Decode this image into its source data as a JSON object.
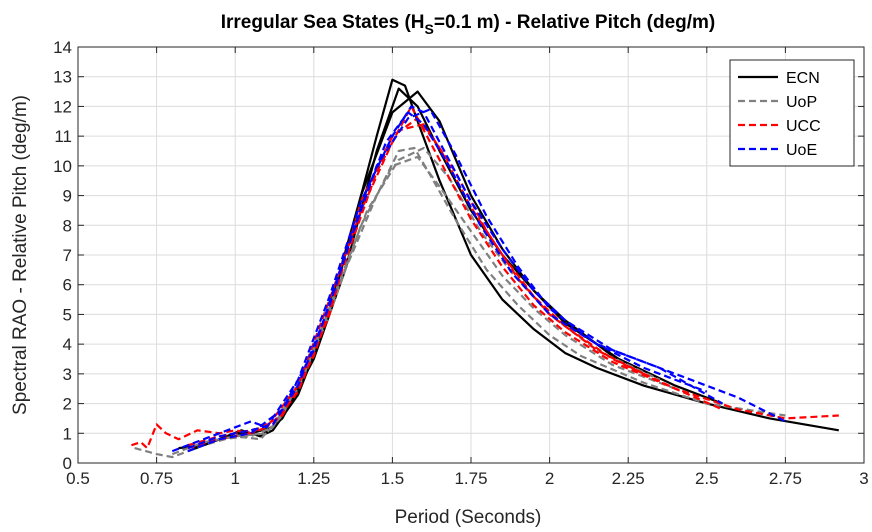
{
  "chart_data": {
    "type": "line",
    "title": {
      "pre": "Irregular Sea States (H",
      "sub": "S",
      "post": "=0.1 m) - Relative Pitch (deg/m)"
    },
    "xlabel": "Period (Seconds)",
    "ylabel": "Spectral RAO - Relative Pitch (deg/m)",
    "xlim": [
      0.5,
      3
    ],
    "ylim": [
      0,
      14
    ],
    "xticks": [
      0.5,
      0.75,
      1,
      1.25,
      1.5,
      1.75,
      2,
      2.25,
      2.5,
      2.75,
      3
    ],
    "xtick_labels": [
      "0.5",
      "0.75",
      "1",
      "1.25",
      "1.5",
      "1.75",
      "2",
      "2.25",
      "2.5",
      "2.75",
      "3"
    ],
    "yticks": [
      0,
      1,
      2,
      3,
      4,
      5,
      6,
      7,
      8,
      9,
      10,
      11,
      12,
      13,
      14
    ],
    "ytick_labels": [
      "0",
      "1",
      "2",
      "3",
      "4",
      "5",
      "6",
      "7",
      "8",
      "9",
      "10",
      "11",
      "12",
      "13",
      "14"
    ],
    "grid": true,
    "legend_position": "top-right",
    "series": [
      {
        "name": "ECN",
        "color": "#000000",
        "dash": "solid",
        "curves": [
          {
            "x": [
              0.82,
              0.9,
              0.95,
              1.0,
              1.05,
              1.08,
              1.12,
              1.2,
              1.3,
              1.4,
              1.45,
              1.5,
              1.54,
              1.58,
              1.65,
              1.75,
              1.85,
              1.95,
              2.05,
              2.15,
              2.3,
              2.5,
              2.7,
              2.92
            ],
            "y": [
              0.5,
              0.6,
              0.8,
              1.0,
              1.0,
              0.9,
              1.1,
              2.3,
              5.0,
              9.0,
              11.0,
              12.9,
              12.7,
              11.5,
              9.5,
              7.0,
              5.5,
              4.5,
              3.7,
              3.2,
              2.6,
              2.0,
              1.5,
              1.1
            ]
          },
          {
            "x": [
              0.85,
              0.95,
              1.02,
              1.08,
              1.15,
              1.25,
              1.35,
              1.45,
              1.52,
              1.58,
              1.65,
              1.75,
              1.85,
              1.95,
              2.05,
              2.15,
              2.22
            ],
            "y": [
              0.4,
              0.8,
              1.1,
              0.9,
              1.5,
              3.5,
              6.5,
              10.5,
              12.6,
              12.0,
              10.5,
              8.5,
              7.0,
              5.8,
              4.7,
              4.0,
              3.5
            ]
          },
          {
            "x": [
              0.85,
              0.95,
              1.05,
              1.12,
              1.2,
              1.3,
              1.4,
              1.5,
              1.58,
              1.65,
              1.75,
              1.85,
              1.95,
              2.05,
              2.2,
              2.4,
              2.55
            ],
            "y": [
              0.4,
              0.8,
              1.0,
              1.2,
              2.4,
              5.2,
              9.0,
              11.8,
              12.5,
              11.5,
              9.0,
              7.2,
              5.8,
              4.8,
              3.6,
              2.6,
              2.0
            ]
          }
        ]
      },
      {
        "name": "UoP",
        "color": "#808080",
        "dash": "dashed",
        "curves": [
          {
            "x": [
              0.68,
              0.75,
              0.8,
              0.9,
              1.0,
              1.08,
              1.15,
              1.25,
              1.35,
              1.45,
              1.52,
              1.57,
              1.62,
              1.7,
              1.8,
              1.9,
              2.0,
              2.1,
              2.3,
              2.5,
              2.75
            ],
            "y": [
              0.5,
              0.3,
              0.2,
              0.6,
              0.9,
              0.8,
              1.6,
              3.8,
              6.5,
              9.0,
              10.5,
              10.6,
              9.7,
              8.2,
              6.5,
              5.3,
              4.3,
              3.6,
              2.7,
              2.0,
              1.6
            ]
          },
          {
            "x": [
              0.8,
              0.9,
              1.0,
              1.1,
              1.2,
              1.3,
              1.4,
              1.5,
              1.58,
              1.65,
              1.75,
              1.85,
              1.95,
              2.05,
              2.2,
              2.4
            ],
            "y": [
              0.3,
              0.7,
              0.9,
              1.0,
              2.5,
              5.0,
              8.0,
              10.0,
              10.3,
              9.3,
              7.8,
              6.3,
              5.2,
              4.3,
              3.3,
              2.5
            ]
          },
          {
            "x": [
              0.85,
              0.95,
              1.05,
              1.12,
              1.22,
              1.32,
              1.42,
              1.52,
              1.6,
              1.68,
              1.78,
              1.88,
              2.0,
              2.15,
              2.35
            ],
            "y": [
              0.4,
              0.8,
              0.9,
              1.2,
              3.0,
              5.8,
              8.5,
              10.2,
              10.6,
              9.6,
              7.8,
              6.4,
              5.0,
              3.8,
              2.8
            ]
          }
        ]
      },
      {
        "name": "UCC",
        "color": "#ff0000",
        "dash": "dashed",
        "curves": [
          {
            "x": [
              0.67,
              0.7,
              0.72,
              0.75,
              0.78,
              0.82,
              0.88,
              0.95,
              1.0,
              1.05,
              1.1,
              1.2,
              1.3,
              1.4,
              1.5,
              1.56,
              1.6,
              1.65,
              1.75,
              1.85,
              1.95,
              2.05,
              2.2,
              2.4,
              2.6,
              2.75,
              2.92
            ],
            "y": [
              0.6,
              0.7,
              0.5,
              1.3,
              1.0,
              0.8,
              1.1,
              1.0,
              1.1,
              1.0,
              1.2,
              2.6,
              5.5,
              8.5,
              10.8,
              12.0,
              11.2,
              10.2,
              8.2,
              6.6,
              5.3,
              4.4,
              3.4,
              2.5,
              1.8,
              1.5,
              1.6
            ]
          },
          {
            "x": [
              0.85,
              0.95,
              1.05,
              1.12,
              1.2,
              1.3,
              1.4,
              1.5,
              1.58,
              1.65,
              1.75,
              1.85,
              1.95,
              2.05,
              2.2,
              2.4,
              2.55
            ],
            "y": [
              0.6,
              0.9,
              1.1,
              1.3,
              2.4,
              5.0,
              8.8,
              11.0,
              11.6,
              10.6,
              8.6,
              7.0,
              5.6,
              4.6,
              3.5,
              2.5,
              1.8
            ]
          },
          {
            "x": [
              0.85,
              0.95,
              1.05,
              1.15,
              1.25,
              1.35,
              1.45,
              1.52,
              1.6,
              1.7,
              1.8,
              1.9,
              2.0,
              2.15,
              2.3
            ],
            "y": [
              0.5,
              0.8,
              1.0,
              1.6,
              3.6,
              6.8,
              9.8,
              11.2,
              11.4,
              9.8,
              7.8,
              6.2,
              5.0,
              3.8,
              3.0
            ]
          }
        ]
      },
      {
        "name": "UoE",
        "color": "#0000ff",
        "dash": "dashed",
        "curves": [
          {
            "x": [
              0.8,
              0.9,
              1.0,
              1.05,
              1.1,
              1.2,
              1.3,
              1.4,
              1.5,
              1.56,
              1.6,
              1.65,
              1.75,
              1.85,
              1.95,
              2.05,
              2.2,
              2.4,
              2.6,
              2.75
            ],
            "y": [
              0.4,
              0.8,
              1.2,
              1.4,
              1.2,
              2.8,
              5.6,
              8.8,
              11.0,
              12.0,
              11.8,
              10.8,
              8.8,
              7.2,
              5.8,
              4.8,
              3.8,
              3.0,
              2.2,
              1.4
            ]
          },
          {
            "x": [
              0.85,
              0.95,
              1.05,
              1.12,
              1.2,
              1.3,
              1.4,
              1.48,
              1.55,
              1.6,
              1.68,
              1.78,
              1.88,
              2.0,
              2.15,
              2.35,
              2.55
            ],
            "y": [
              0.5,
              0.9,
              1.1,
              1.3,
              2.6,
              5.3,
              8.6,
              10.8,
              11.8,
              11.4,
              10.0,
              8.0,
              6.4,
              5.0,
              4.0,
              3.2,
              2.0
            ]
          },
          {
            "x": [
              0.85,
              0.95,
              1.05,
              1.15,
              1.25,
              1.35,
              1.45,
              1.55,
              1.62,
              1.7,
              1.8,
              1.9,
              2.0,
              2.15,
              2.3,
              2.5
            ],
            "y": [
              0.4,
              0.8,
              1.0,
              1.8,
              3.8,
              7.0,
              10.0,
              11.6,
              11.9,
              10.4,
              8.3,
              6.6,
              5.2,
              4.0,
              3.2,
              2.4
            ]
          }
        ]
      }
    ]
  }
}
